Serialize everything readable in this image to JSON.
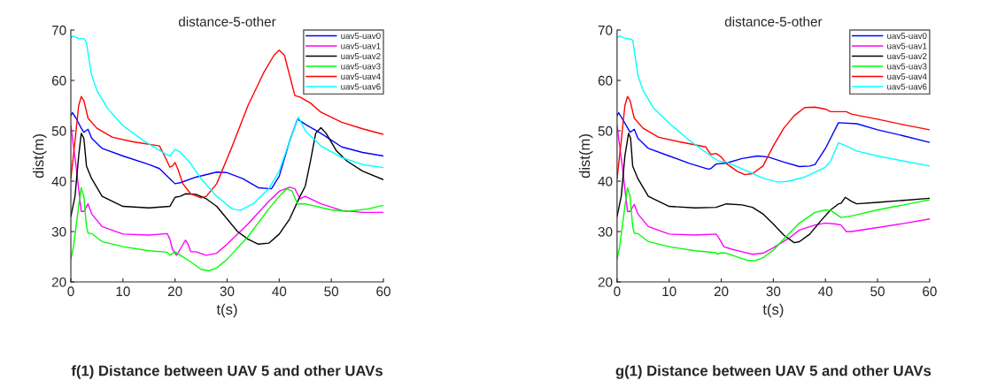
{
  "chart_data": [
    {
      "type": "line",
      "title": "distance-5-other",
      "xlabel": "t(s)",
      "ylabel": "dist(m)",
      "xlim": [
        0,
        60
      ],
      "ylim": [
        20,
        70
      ],
      "xticks": [
        0,
        10,
        20,
        30,
        40,
        50,
        60
      ],
      "yticks": [
        20,
        30,
        40,
        50,
        60,
        70
      ],
      "grid": false,
      "legend": "top right",
      "annotations": [
        "f(1) Distance between UAV 5 and other UAVs"
      ],
      "series": [
        {
          "name": "uav5-uav0",
          "color": "#0000ff",
          "x": [
            0,
            0.3,
            1,
            2,
            2.5,
            3.3,
            4,
            6,
            10,
            15,
            17,
            18,
            19,
            20,
            21,
            24,
            28,
            30,
            33,
            36,
            38.5,
            40,
            42,
            43.5,
            45,
            48,
            52,
            56,
            60
          ],
          "values": [
            53,
            53.6,
            52.5,
            50.5,
            49.7,
            50.3,
            48.5,
            46.5,
            45,
            43.3,
            42.5,
            41.5,
            40.5,
            39.5,
            39.7,
            40.8,
            41.8,
            41.7,
            40.5,
            38.7,
            38.5,
            41,
            48,
            52.3,
            51.3,
            49.5,
            46.8,
            45.7,
            45
          ]
        },
        {
          "name": "uav5-uav1",
          "color": "#ff00ff",
          "x": [
            0,
            1,
            2,
            2.5,
            3.3,
            4,
            6,
            10,
            15,
            18.5,
            19,
            19.5,
            20.3,
            21,
            22,
            22.5,
            23,
            24,
            26,
            28,
            30,
            34,
            38,
            40,
            42,
            43,
            44,
            45,
            48,
            52,
            56,
            60
          ],
          "values": [
            51,
            43,
            34,
            34,
            35.5,
            33.5,
            31,
            29.5,
            29.3,
            29.6,
            28.5,
            26.5,
            25.3,
            26.5,
            28.3,
            27.5,
            26,
            26,
            25.3,
            25.7,
            27.5,
            31.5,
            36,
            38,
            38.8,
            38.5,
            36.5,
            37,
            35.5,
            34.2,
            33.8,
            33.8
          ]
        },
        {
          "name": "uav5-uav2",
          "color": "#000000",
          "x": [
            0,
            0.8,
            1.5,
            2,
            2.5,
            3,
            4,
            6,
            10,
            15,
            19,
            20,
            21,
            22,
            24,
            26,
            28,
            30,
            32,
            34,
            36,
            38,
            40,
            42,
            44,
            45,
            46,
            47,
            48,
            49,
            51,
            53,
            56,
            60
          ],
          "values": [
            33,
            37,
            45,
            49.5,
            48.5,
            43,
            40.5,
            37,
            35,
            34.7,
            35,
            36.8,
            37,
            37.5,
            37.4,
            36.5,
            35,
            32.5,
            30,
            28.5,
            27.5,
            27.7,
            29.5,
            32.5,
            37,
            39,
            44,
            49.5,
            50.6,
            49.5,
            46,
            44,
            42,
            40.3
          ]
        },
        {
          "name": "uav5-uav3",
          "color": "#00ff00",
          "x": [
            0,
            0.5,
            1.5,
            2,
            2.5,
            3,
            3.3,
            4,
            6,
            10,
            15,
            18.5,
            19,
            20,
            21,
            23,
            25,
            26.5,
            28,
            30,
            34,
            38,
            40,
            41.5,
            42.5,
            43.5,
            45,
            50,
            53,
            57,
            60
          ],
          "values": [
            24.5,
            27,
            35,
            38.7,
            37,
            31,
            29.7,
            29.6,
            28,
            27,
            26.2,
            25.9,
            25.3,
            26,
            25.3,
            24,
            22.5,
            22.2,
            22.8,
            24.5,
            29,
            34.5,
            37,
            38.5,
            38,
            35.5,
            35.5,
            34.3,
            34,
            34.5,
            35.2
          ]
        },
        {
          "name": "uav5-uav4",
          "color": "#ff0000",
          "x": [
            0,
            0.8,
            1.5,
            2,
            2.5,
            3.3,
            5,
            8,
            12,
            17,
            18,
            19,
            19.5,
            20,
            20.5,
            21.5,
            23,
            25,
            26,
            28,
            31,
            34,
            37,
            39,
            40,
            41,
            42,
            43,
            44,
            46,
            48,
            52,
            56,
            60
          ],
          "values": [
            40.5,
            48,
            55,
            56.8,
            56,
            52.5,
            50.5,
            48.7,
            47.8,
            47,
            45,
            42.8,
            43,
            43.7,
            42.5,
            39.5,
            37.5,
            36.7,
            37,
            39.5,
            47,
            55,
            61.5,
            65,
            66,
            65,
            61,
            57,
            56.7,
            55.5,
            53.7,
            51.7,
            50.4,
            49.3
          ]
        },
        {
          "name": "uav5-uav6",
          "color": "#00ffff",
          "x": [
            0,
            0.5,
            1.5,
            2.5,
            3,
            3.5,
            4,
            5,
            7,
            10,
            14,
            18,
            19,
            20,
            21,
            23,
            25,
            28,
            31,
            32.5,
            35,
            38,
            40,
            42,
            43.7,
            45,
            48,
            52,
            56,
            60
          ],
          "values": [
            68.5,
            68.8,
            68.3,
            68.3,
            67.5,
            64,
            61,
            58,
            54.5,
            51,
            48,
            45.5,
            45,
            46.3,
            45.8,
            43.5,
            40.5,
            37,
            34.5,
            34.2,
            35.5,
            38.5,
            42,
            48,
            52.7,
            50,
            47,
            44.7,
            43.3,
            42.7
          ]
        }
      ]
    },
    {
      "type": "line",
      "title": "distance-5-other",
      "xlabel": "t(s)",
      "ylabel": "dist(m)",
      "xlim": [
        0,
        60
      ],
      "ylim": [
        20,
        70
      ],
      "xticks": [
        0,
        10,
        20,
        30,
        40,
        50,
        60
      ],
      "yticks": [
        20,
        30,
        40,
        50,
        60,
        70
      ],
      "grid": false,
      "legend": "top right",
      "annotations": [
        "g(1) Distance between UAV 5 and other UAVs"
      ],
      "series": [
        {
          "name": "uav5-uav0",
          "color": "#0000ff",
          "x": [
            0,
            0.3,
            1.5,
            2.5,
            3.3,
            4,
            6,
            10,
            14,
            17.5,
            18,
            19,
            21,
            24,
            27,
            29,
            32,
            35,
            37,
            38,
            40,
            42.5,
            46,
            50,
            55,
            60
          ],
          "values": [
            53,
            53.6,
            51.5,
            49.7,
            50.3,
            48.5,
            46.5,
            45,
            43.5,
            42.4,
            42.5,
            43.4,
            43.6,
            44.5,
            45,
            44.8,
            43.8,
            42.9,
            43,
            43.3,
            46.5,
            51.6,
            51.4,
            50.2,
            49,
            47.7
          ]
        },
        {
          "name": "uav5-uav1",
          "color": "#ff00ff",
          "x": [
            0,
            1,
            2,
            2.5,
            3.3,
            4,
            6,
            10,
            15,
            19,
            19.5,
            20.5,
            22,
            24,
            26,
            28,
            30,
            33,
            35,
            38,
            40,
            42,
            43,
            44,
            45,
            50,
            55,
            60
          ],
          "values": [
            51,
            43,
            34,
            34,
            35.4,
            33.5,
            31,
            29.5,
            29.3,
            29.5,
            28.8,
            27,
            26.5,
            26,
            25.5,
            25.7,
            26.8,
            28.7,
            30.3,
            31.3,
            31.7,
            31.5,
            31.3,
            30,
            30,
            30.8,
            31.6,
            32.5
          ]
        },
        {
          "name": "uav5-uav2",
          "color": "#000000",
          "x": [
            0,
            0.8,
            1.5,
            2.2,
            2.6,
            3,
            4,
            6,
            10,
            15,
            19,
            21,
            24,
            26,
            28,
            30,
            32,
            34,
            35,
            37,
            39,
            41,
            42.5,
            43,
            43.8,
            45,
            46,
            50,
            55,
            60
          ],
          "values": [
            33,
            37,
            45,
            49.5,
            48.5,
            43,
            40.5,
            37,
            35,
            34.7,
            34.8,
            35.5,
            35.3,
            34.8,
            33.5,
            31.5,
            29.3,
            27.8,
            28,
            29.5,
            32,
            34.3,
            35.5,
            35.6,
            36.8,
            36,
            35.5,
            35.8,
            36.2,
            36.6
          ]
        },
        {
          "name": "uav5-uav3",
          "color": "#00ff00",
          "x": [
            0,
            0.5,
            1.5,
            2,
            2.5,
            3,
            3.3,
            4,
            6,
            10,
            15,
            19,
            19.3,
            20,
            21,
            23,
            25,
            26.5,
            28,
            30,
            32,
            35,
            38,
            40,
            41,
            42,
            43,
            45,
            50,
            55,
            60
          ],
          "values": [
            24.5,
            27,
            35,
            38.7,
            37,
            31,
            29.7,
            29.6,
            28,
            27,
            26.2,
            25.8,
            25.5,
            25.8,
            25.7,
            25,
            24.3,
            24.2,
            24.8,
            26.3,
            28.5,
            31.7,
            33.8,
            34.3,
            34.2,
            33.5,
            32.8,
            33.1,
            34.3,
            35.3,
            36.3
          ]
        },
        {
          "name": "uav5-uav4",
          "color": "#ff0000",
          "x": [
            0,
            0.8,
            1.5,
            2,
            2.5,
            3.3,
            5,
            8,
            12,
            17,
            18,
            19,
            20,
            21,
            23,
            24.5,
            26,
            28,
            30,
            32,
            34,
            36,
            38,
            40,
            41,
            44,
            45,
            50,
            55,
            60
          ],
          "values": [
            40.5,
            48,
            55,
            56.8,
            56,
            52.5,
            50.5,
            48.7,
            47.8,
            46.8,
            45.3,
            45.5,
            44.8,
            43.5,
            42,
            41.3,
            41.5,
            43,
            47,
            50.5,
            53,
            54.6,
            54.7,
            54.3,
            53.8,
            53.8,
            53.3,
            52.3,
            51.2,
            50.2
          ]
        },
        {
          "name": "uav5-uav6",
          "color": "#00ffff",
          "x": [
            0,
            0.5,
            1.5,
            2.5,
            3,
            3.5,
            4,
            5,
            7,
            10,
            14,
            18,
            19.5,
            21,
            25,
            28,
            31,
            33,
            36,
            38,
            40,
            41,
            42.5,
            44,
            46,
            50,
            55,
            60
          ],
          "values": [
            68.5,
            68.8,
            68.4,
            68.2,
            68,
            64.5,
            61,
            58,
            54.5,
            51.5,
            48,
            45,
            44,
            43.8,
            42,
            40.6,
            39.8,
            40,
            40.8,
            41.8,
            42.8,
            44,
            47.6,
            47,
            46,
            45,
            44,
            43
          ]
        }
      ]
    }
  ]
}
